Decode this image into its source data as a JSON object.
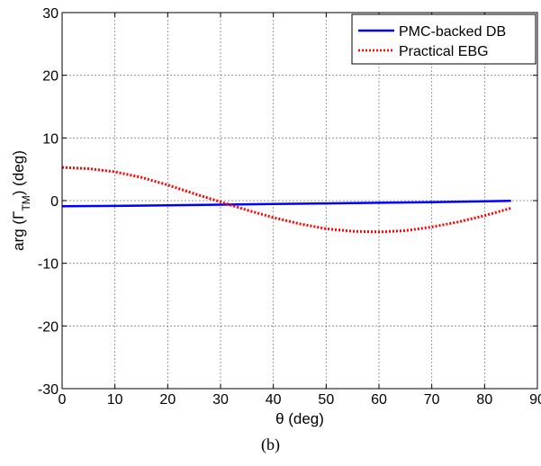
{
  "caption": "(b)",
  "chart_data": {
    "type": "line",
    "xlabel": "θ (deg)",
    "ylabel_main": "arg (Γ",
    "ylabel_sub": "TM",
    "ylabel_tail": ") (deg)",
    "xlim": [
      0,
      90
    ],
    "ylim": [
      -30,
      30
    ],
    "xticks": [
      0,
      10,
      20,
      30,
      40,
      50,
      60,
      70,
      80,
      90
    ],
    "yticks": [
      -30,
      -20,
      -10,
      0,
      10,
      20,
      30
    ],
    "grid": true,
    "legend_position": "top-right",
    "series": [
      {
        "name": "PMC-backed DB",
        "color": "#0000ff",
        "style": "solid",
        "x": [
          0,
          10,
          20,
          30,
          40,
          50,
          60,
          70,
          80,
          85
        ],
        "y": [
          -0.9,
          -0.85,
          -0.75,
          -0.65,
          -0.55,
          -0.45,
          -0.35,
          -0.25,
          -0.12,
          -0.05
        ]
      },
      {
        "name": "Practical EBG",
        "color": "#ff0000",
        "style": "dotted",
        "x": [
          0,
          5,
          10,
          15,
          20,
          25,
          30,
          35,
          40,
          45,
          50,
          55,
          60,
          65,
          70,
          75,
          80,
          85
        ],
        "y": [
          5.3,
          5.1,
          4.6,
          3.7,
          2.5,
          1.1,
          -0.2,
          -1.5,
          -2.7,
          -3.7,
          -4.5,
          -4.9,
          -5.0,
          -4.8,
          -4.2,
          -3.4,
          -2.4,
          -1.2
        ]
      }
    ]
  }
}
